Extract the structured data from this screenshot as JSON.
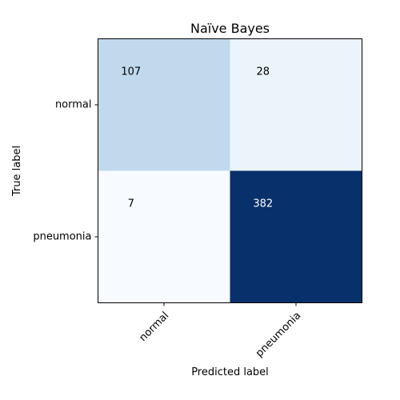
{
  "chart_data": {
    "type": "heatmap",
    "title": "Naïve Bayes",
    "xlabel": "Predicted label",
    "ylabel": "True label",
    "x_categories": [
      "normal",
      "pneumonia"
    ],
    "y_categories": [
      "normal",
      "pneumonia"
    ],
    "values": [
      [
        107,
        28
      ],
      [
        7,
        382
      ]
    ],
    "colormap": "Blues",
    "colors": {
      "low": "#f7fbff",
      "high": "#08306b",
      "text_dark": "#000000",
      "text_light": "#ffffff",
      "axis": "#000000"
    },
    "x_tick_rotation_deg": 45,
    "grid": false,
    "legend": "none"
  }
}
